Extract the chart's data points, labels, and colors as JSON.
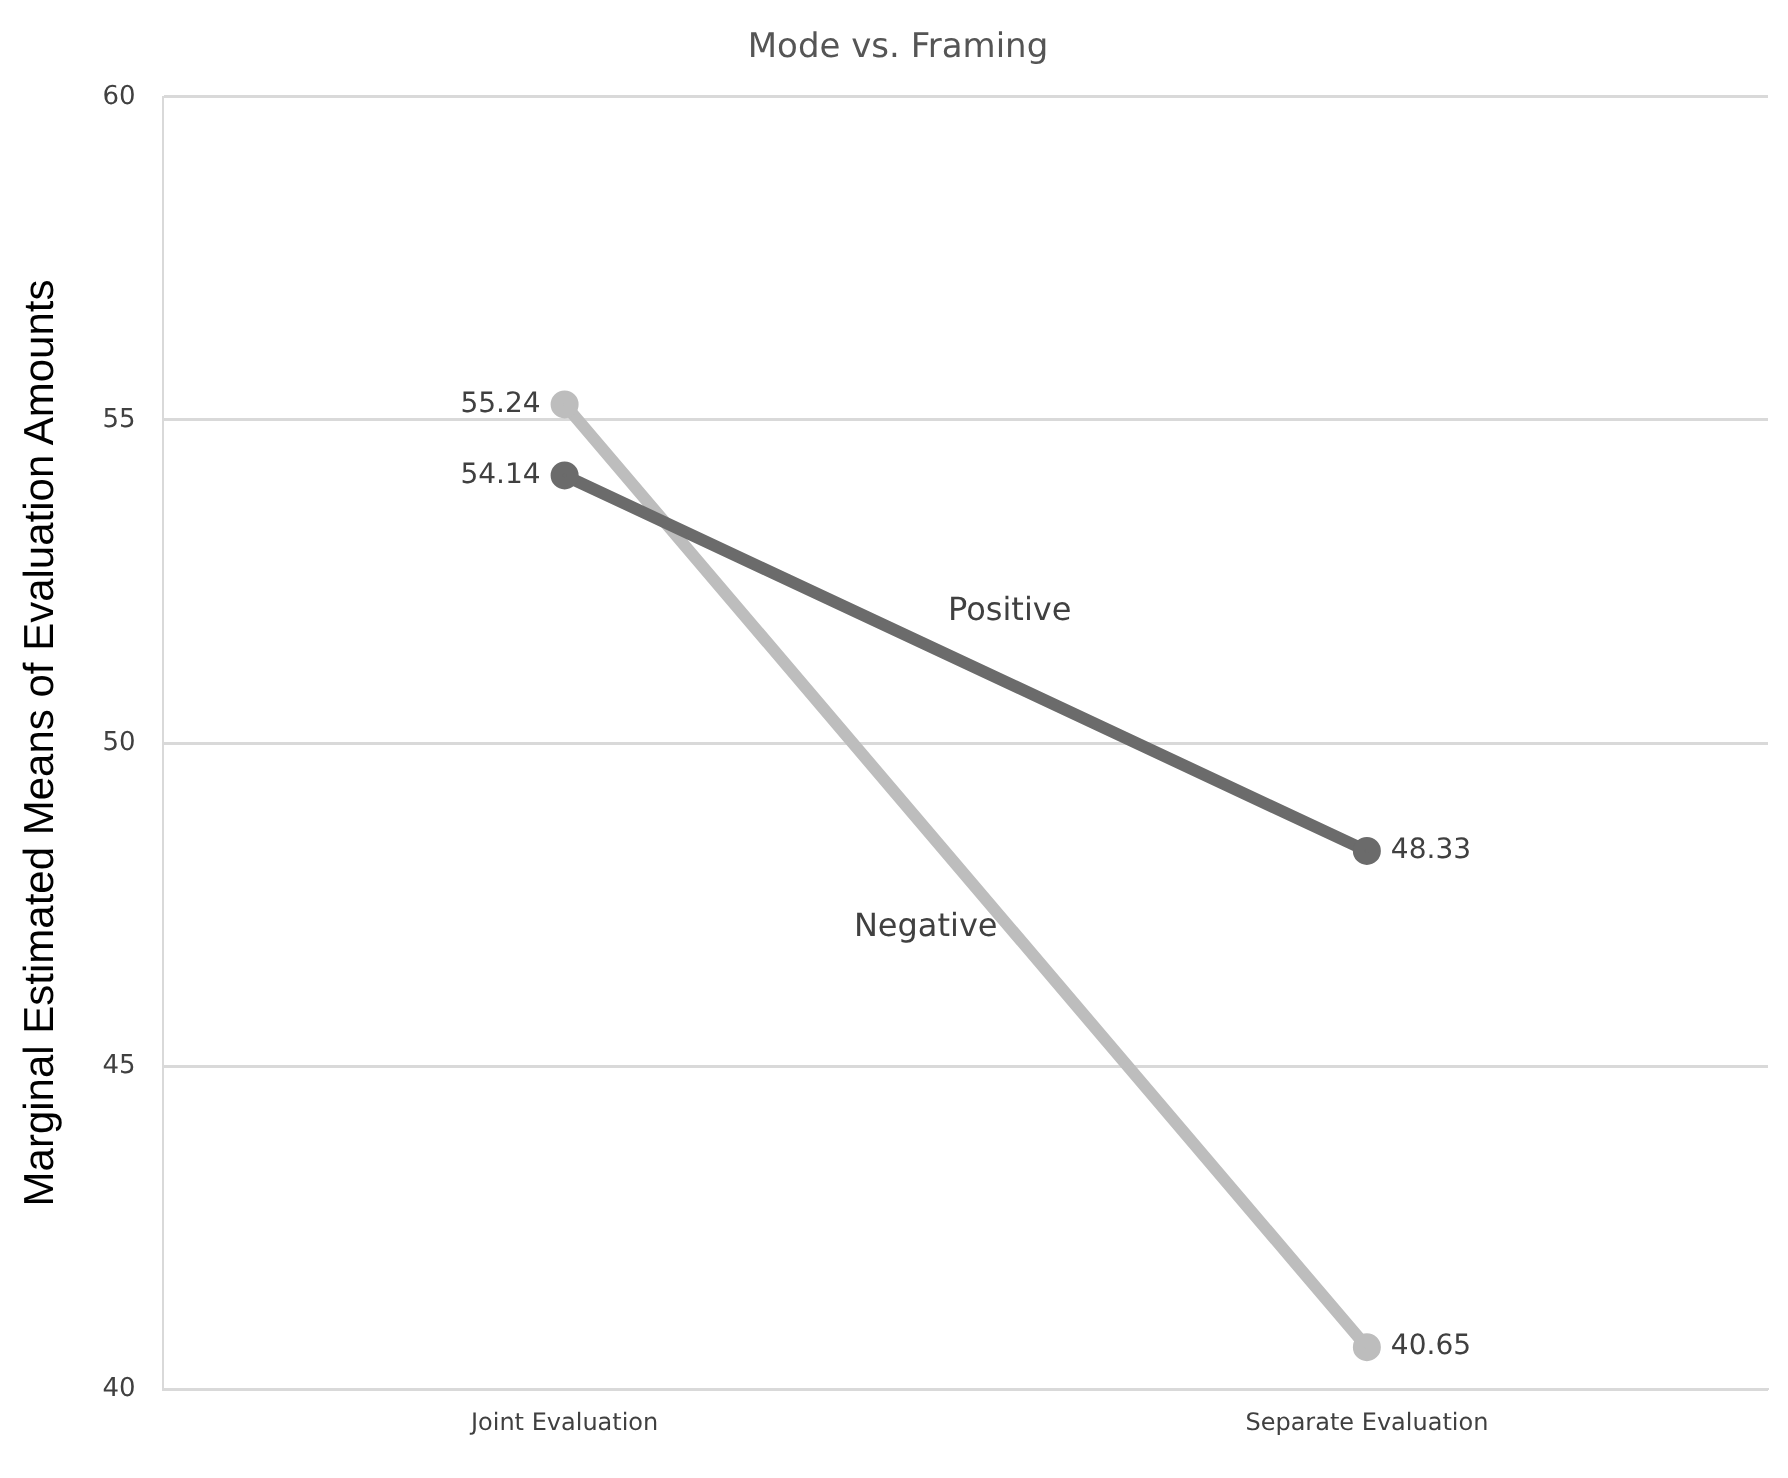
{
  "chart_data": {
    "type": "line",
    "title": "Mode vs. Framing",
    "ylabel": "Marginal Estimated Means of Evaluation Amounts",
    "categories": [
      "Joint Evaluation",
      "Separate Evaluation"
    ],
    "series": [
      {
        "name": "Positive",
        "color": "#6b6b6b",
        "values": [
          54.14,
          48.33
        ]
      },
      {
        "name": "Negative",
        "color": "#bdbdbd",
        "values": [
          55.24,
          40.65
        ]
      }
    ],
    "ylim": [
      40,
      60
    ],
    "yticks": [
      40,
      45,
      50,
      55,
      60
    ],
    "grid": "y",
    "legend": false,
    "marker": "circle",
    "line_style": "solid",
    "data_labels": true
  }
}
